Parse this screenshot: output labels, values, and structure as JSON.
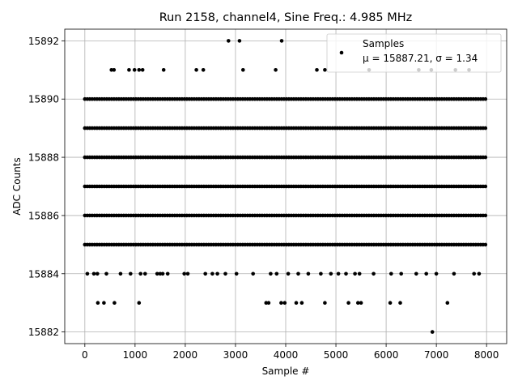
{
  "chart_data": {
    "type": "scatter",
    "title": "Run 2158, channel4, Sine Freq.: 4.985 MHz",
    "xlabel": "Sample #",
    "ylabel": "ADC Counts",
    "xlim": [
      -400,
      8400
    ],
    "ylim": [
      15881.6,
      15892.4
    ],
    "x_ticks": [
      0,
      1000,
      2000,
      3000,
      4000,
      5000,
      6000,
      7000,
      8000
    ],
    "y_ticks": [
      15882,
      15884,
      15886,
      15888,
      15890,
      15892
    ],
    "grid": true,
    "legend_position": "top-right",
    "marker_color": "#000000",
    "n_samples": 8000,
    "series": [
      {
        "name": "Samples",
        "label_line2": "μ = 15887.21, σ = 1.34",
        "dense_levels": [
          {
            "y": 15885,
            "x_range": [
              0,
              8000
            ]
          },
          {
            "y": 15886,
            "x_range": [
              0,
              8000
            ]
          },
          {
            "y": 15887,
            "x_range": [
              0,
              8000
            ]
          },
          {
            "y": 15888,
            "x_range": [
              0,
              8000
            ]
          },
          {
            "y": 15889,
            "x_range": [
              0,
              8000
            ]
          },
          {
            "y": 15890,
            "x_range": [
              0,
              8000
            ]
          }
        ],
        "sparse_points": [
          {
            "x": 2860,
            "y": 15892
          },
          {
            "x": 3080,
            "y": 15892
          },
          {
            "x": 3920,
            "y": 15892
          },
          {
            "x": 530,
            "y": 15891
          },
          {
            "x": 580,
            "y": 15891
          },
          {
            "x": 880,
            "y": 15891
          },
          {
            "x": 990,
            "y": 15891
          },
          {
            "x": 1080,
            "y": 15891
          },
          {
            "x": 1150,
            "y": 15891
          },
          {
            "x": 1570,
            "y": 15891
          },
          {
            "x": 2220,
            "y": 15891
          },
          {
            "x": 2360,
            "y": 15891
          },
          {
            "x": 3150,
            "y": 15891
          },
          {
            "x": 3800,
            "y": 15891
          },
          {
            "x": 4620,
            "y": 15891
          },
          {
            "x": 4780,
            "y": 15891
          },
          {
            "x": 5660,
            "y": 15891
          },
          {
            "x": 6650,
            "y": 15891
          },
          {
            "x": 6900,
            "y": 15891
          },
          {
            "x": 7380,
            "y": 15891
          },
          {
            "x": 7650,
            "y": 15891
          },
          {
            "x": 50,
            "y": 15884
          },
          {
            "x": 180,
            "y": 15884
          },
          {
            "x": 250,
            "y": 15884
          },
          {
            "x": 430,
            "y": 15884
          },
          {
            "x": 710,
            "y": 15884
          },
          {
            "x": 910,
            "y": 15884
          },
          {
            "x": 1110,
            "y": 15884
          },
          {
            "x": 1200,
            "y": 15884
          },
          {
            "x": 1440,
            "y": 15884
          },
          {
            "x": 1500,
            "y": 15884
          },
          {
            "x": 1550,
            "y": 15884
          },
          {
            "x": 1650,
            "y": 15884
          },
          {
            "x": 1980,
            "y": 15884
          },
          {
            "x": 2050,
            "y": 15884
          },
          {
            "x": 2400,
            "y": 15884
          },
          {
            "x": 2540,
            "y": 15884
          },
          {
            "x": 2640,
            "y": 15884
          },
          {
            "x": 2800,
            "y": 15884
          },
          {
            "x": 3020,
            "y": 15884
          },
          {
            "x": 3350,
            "y": 15884
          },
          {
            "x": 3700,
            "y": 15884
          },
          {
            "x": 3820,
            "y": 15884
          },
          {
            "x": 4050,
            "y": 15884
          },
          {
            "x": 4250,
            "y": 15884
          },
          {
            "x": 4450,
            "y": 15884
          },
          {
            "x": 4700,
            "y": 15884
          },
          {
            "x": 4900,
            "y": 15884
          },
          {
            "x": 5050,
            "y": 15884
          },
          {
            "x": 5200,
            "y": 15884
          },
          {
            "x": 5380,
            "y": 15884
          },
          {
            "x": 5470,
            "y": 15884
          },
          {
            "x": 5750,
            "y": 15884
          },
          {
            "x": 6100,
            "y": 15884
          },
          {
            "x": 6300,
            "y": 15884
          },
          {
            "x": 6600,
            "y": 15884
          },
          {
            "x": 6800,
            "y": 15884
          },
          {
            "x": 7000,
            "y": 15884
          },
          {
            "x": 7350,
            "y": 15884
          },
          {
            "x": 7750,
            "y": 15884
          },
          {
            "x": 7850,
            "y": 15884
          },
          {
            "x": 260,
            "y": 15883
          },
          {
            "x": 380,
            "y": 15883
          },
          {
            "x": 590,
            "y": 15883
          },
          {
            "x": 1080,
            "y": 15883
          },
          {
            "x": 3610,
            "y": 15883
          },
          {
            "x": 3660,
            "y": 15883
          },
          {
            "x": 3910,
            "y": 15883
          },
          {
            "x": 3980,
            "y": 15883
          },
          {
            "x": 4210,
            "y": 15883
          },
          {
            "x": 4320,
            "y": 15883
          },
          {
            "x": 4780,
            "y": 15883
          },
          {
            "x": 5250,
            "y": 15883
          },
          {
            "x": 5440,
            "y": 15883
          },
          {
            "x": 5500,
            "y": 15883
          },
          {
            "x": 6080,
            "y": 15883
          },
          {
            "x": 6280,
            "y": 15883
          },
          {
            "x": 7220,
            "y": 15883
          },
          {
            "x": 6920,
            "y": 15882
          }
        ]
      }
    ]
  }
}
